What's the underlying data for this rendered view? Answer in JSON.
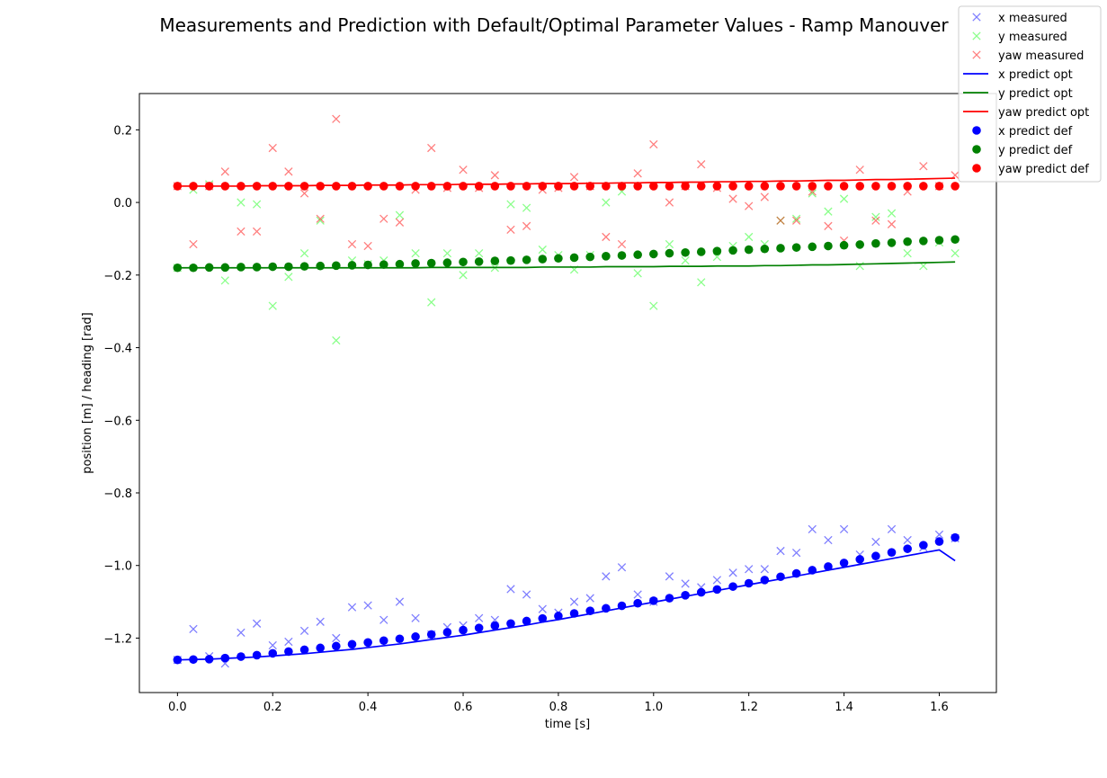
{
  "chart_data": {
    "type": "scatter",
    "title": "Measurements and Prediction with Default/Optimal Parameter Values - Ramp Manouver",
    "xlabel": "time [s]",
    "ylabel": "position [m] / heading [rad]",
    "xlim": [
      -0.08,
      1.72
    ],
    "ylim": [
      -1.35,
      0.3
    ],
    "xticks": [
      0.0,
      0.2,
      0.4,
      0.6,
      0.8,
      1.0,
      1.2,
      1.4,
      1.6
    ],
    "xtick_labels": [
      "0.0",
      "0.2",
      "0.4",
      "0.6",
      "0.8",
      "1.0",
      "1.2",
      "1.4",
      "1.6"
    ],
    "yticks": [
      0.2,
      0.0,
      -0.2,
      -0.4,
      -0.6,
      -0.8,
      -1.0,
      -1.2
    ],
    "ytick_labels": [
      "0.2",
      "0.0",
      "−0.2",
      "−0.4",
      "−0.6",
      "−0.8",
      "−1.0",
      "−1.2"
    ],
    "grid": false,
    "legend_position": "top-right (outside axes)",
    "x": [
      0.0,
      0.0333,
      0.0667,
      0.1,
      0.1333,
      0.1667,
      0.2,
      0.2333,
      0.2667,
      0.3,
      0.3333,
      0.3667,
      0.4,
      0.4333,
      0.4667,
      0.5,
      0.5333,
      0.5667,
      0.6,
      0.6333,
      0.6667,
      0.7,
      0.7333,
      0.7667,
      0.8,
      0.8333,
      0.8667,
      0.9,
      0.9333,
      0.9667,
      1.0,
      1.0333,
      1.0667,
      1.1,
      1.1333,
      1.1667,
      1.2,
      1.2333,
      1.2667,
      1.3,
      1.3333,
      1.3667,
      1.4,
      1.4333,
      1.4667,
      1.5,
      1.5333,
      1.5667,
      1.6,
      1.6333
    ],
    "series": [
      {
        "name": "x measured",
        "kind": "marker-x",
        "color": "#0000ff",
        "opacity": 0.5,
        "values": [
          -1.26,
          -1.175,
          -1.25,
          -1.27,
          -1.185,
          -1.16,
          -1.22,
          -1.21,
          -1.18,
          -1.155,
          -1.2,
          -1.115,
          -1.11,
          -1.15,
          -1.1,
          -1.145,
          -1.19,
          -1.17,
          -1.165,
          -1.145,
          -1.15,
          -1.065,
          -1.08,
          -1.12,
          -1.13,
          -1.1,
          -1.09,
          -1.03,
          -1.005,
          -1.08,
          -1.1,
          -1.03,
          -1.05,
          -1.06,
          -1.04,
          -1.02,
          -1.01,
          -1.01,
          -0.96,
          -0.965,
          -0.9,
          -0.93,
          -0.9,
          -0.97,
          -0.935,
          -0.9,
          -0.93,
          -0.95,
          -0.915,
          -0.925
        ]
      },
      {
        "name": "y measured",
        "kind": "marker-x",
        "color": "#00ff00",
        "opacity": 0.45,
        "values": [
          -0.18,
          0.035,
          0.05,
          -0.215,
          0.0,
          -0.005,
          -0.285,
          -0.205,
          -0.14,
          -0.05,
          -0.38,
          -0.16,
          -0.17,
          -0.16,
          -0.035,
          -0.14,
          -0.275,
          -0.14,
          -0.2,
          -0.14,
          -0.18,
          -0.005,
          -0.015,
          -0.13,
          -0.145,
          -0.185,
          -0.145,
          0.0,
          0.03,
          -0.195,
          -0.285,
          -0.115,
          -0.16,
          -0.22,
          -0.15,
          -0.12,
          -0.095,
          -0.115,
          -0.05,
          -0.045,
          0.025,
          -0.025,
          0.01,
          -0.175,
          -0.04,
          -0.03,
          -0.14,
          -0.175,
          -0.11,
          -0.14
        ]
      },
      {
        "name": "yaw measured",
        "kind": "marker-x",
        "color": "#ff0000",
        "opacity": 0.5,
        "values": [
          0.045,
          -0.115,
          0.045,
          0.085,
          -0.08,
          -0.08,
          0.15,
          0.085,
          0.025,
          -0.045,
          0.23,
          -0.115,
          -0.12,
          -0.045,
          -0.055,
          0.035,
          0.15,
          0.04,
          0.09,
          0.04,
          0.075,
          -0.075,
          -0.065,
          0.035,
          0.04,
          0.07,
          0.045,
          -0.095,
          -0.115,
          0.08,
          0.16,
          0.0,
          0.045,
          0.105,
          0.04,
          0.01,
          -0.01,
          0.015,
          -0.05,
          -0.05,
          0.03,
          -0.065,
          -0.105,
          0.09,
          -0.05,
          -0.06,
          0.03,
          0.1,
          0.045,
          0.075
        ]
      },
      {
        "name": "x predict opt",
        "kind": "line",
        "color": "#0000ff",
        "values": [
          -1.26,
          -1.259,
          -1.258,
          -1.256,
          -1.254,
          -1.252,
          -1.249,
          -1.246,
          -1.243,
          -1.239,
          -1.235,
          -1.231,
          -1.226,
          -1.221,
          -1.216,
          -1.21,
          -1.204,
          -1.198,
          -1.192,
          -1.185,
          -1.178,
          -1.171,
          -1.164,
          -1.156,
          -1.149,
          -1.141,
          -1.133,
          -1.125,
          -1.117,
          -1.109,
          -1.101,
          -1.093,
          -1.085,
          -1.077,
          -1.069,
          -1.061,
          -1.053,
          -1.045,
          -1.037,
          -1.029,
          -1.021,
          -1.013,
          -1.005,
          -0.997,
          -0.989,
          -0.981,
          -0.973,
          -0.965,
          -0.957,
          -0.987
        ]
      },
      {
        "name": "y predict opt",
        "kind": "line",
        "color": "#008000",
        "values": [
          -0.18,
          -0.18,
          -0.18,
          -0.18,
          -0.18,
          -0.18,
          -0.18,
          -0.18,
          -0.18,
          -0.18,
          -0.18,
          -0.18,
          -0.18,
          -0.18,
          -0.18,
          -0.18,
          -0.179,
          -0.179,
          -0.179,
          -0.179,
          -0.179,
          -0.179,
          -0.179,
          -0.178,
          -0.178,
          -0.178,
          -0.178,
          -0.177,
          -0.177,
          -0.177,
          -0.177,
          -0.176,
          -0.176,
          -0.176,
          -0.175,
          -0.175,
          -0.175,
          -0.174,
          -0.174,
          -0.173,
          -0.172,
          -0.172,
          -0.171,
          -0.17,
          -0.169,
          -0.168,
          -0.167,
          -0.166,
          -0.165,
          -0.164
        ]
      },
      {
        "name": "yaw predict opt",
        "kind": "line",
        "color": "#ff0000",
        "values": [
          0.045,
          0.045,
          0.045,
          0.045,
          0.045,
          0.046,
          0.046,
          0.046,
          0.046,
          0.047,
          0.047,
          0.047,
          0.048,
          0.048,
          0.048,
          0.049,
          0.049,
          0.049,
          0.05,
          0.05,
          0.05,
          0.051,
          0.051,
          0.052,
          0.052,
          0.052,
          0.053,
          0.053,
          0.054,
          0.054,
          0.055,
          0.055,
          0.056,
          0.056,
          0.057,
          0.057,
          0.058,
          0.058,
          0.059,
          0.059,
          0.06,
          0.061,
          0.061,
          0.062,
          0.063,
          0.063,
          0.064,
          0.065,
          0.066,
          0.067
        ]
      },
      {
        "name": "x predict def",
        "kind": "dot",
        "color": "#0000ff",
        "values": [
          -1.26,
          -1.259,
          -1.258,
          -1.255,
          -1.251,
          -1.247,
          -1.242,
          -1.237,
          -1.232,
          -1.227,
          -1.222,
          -1.217,
          -1.212,
          -1.207,
          -1.202,
          -1.196,
          -1.19,
          -1.184,
          -1.178,
          -1.172,
          -1.166,
          -1.16,
          -1.153,
          -1.146,
          -1.139,
          -1.132,
          -1.125,
          -1.118,
          -1.111,
          -1.104,
          -1.097,
          -1.09,
          -1.082,
          -1.074,
          -1.066,
          -1.058,
          -1.049,
          -1.04,
          -1.031,
          -1.022,
          -1.013,
          -1.003,
          -0.993,
          -0.983,
          -0.974,
          -0.964,
          -0.954,
          -0.944,
          -0.934,
          -0.923
        ]
      },
      {
        "name": "y predict def",
        "kind": "dot",
        "color": "#008000",
        "values": [
          -0.18,
          -0.18,
          -0.179,
          -0.179,
          -0.178,
          -0.178,
          -0.177,
          -0.177,
          -0.176,
          -0.175,
          -0.174,
          -0.173,
          -0.172,
          -0.171,
          -0.17,
          -0.168,
          -0.167,
          -0.166,
          -0.164,
          -0.163,
          -0.161,
          -0.16,
          -0.158,
          -0.156,
          -0.154,
          -0.152,
          -0.15,
          -0.148,
          -0.146,
          -0.144,
          -0.142,
          -0.14,
          -0.138,
          -0.136,
          -0.134,
          -0.132,
          -0.13,
          -0.128,
          -0.126,
          -0.124,
          -0.122,
          -0.12,
          -0.118,
          -0.116,
          -0.113,
          -0.111,
          -0.108,
          -0.106,
          -0.104,
          -0.102
        ]
      },
      {
        "name": "yaw predict def",
        "kind": "dot",
        "color": "#ff0000",
        "values": [
          0.045,
          0.045,
          0.045,
          0.045,
          0.045,
          0.045,
          0.045,
          0.045,
          0.045,
          0.045,
          0.045,
          0.045,
          0.045,
          0.045,
          0.045,
          0.045,
          0.045,
          0.045,
          0.045,
          0.045,
          0.045,
          0.045,
          0.045,
          0.045,
          0.045,
          0.045,
          0.045,
          0.045,
          0.045,
          0.045,
          0.045,
          0.045,
          0.045,
          0.045,
          0.045,
          0.045,
          0.045,
          0.045,
          0.045,
          0.045,
          0.045,
          0.045,
          0.045,
          0.045,
          0.045,
          0.045,
          0.045,
          0.045,
          0.045,
          0.045
        ]
      }
    ]
  }
}
